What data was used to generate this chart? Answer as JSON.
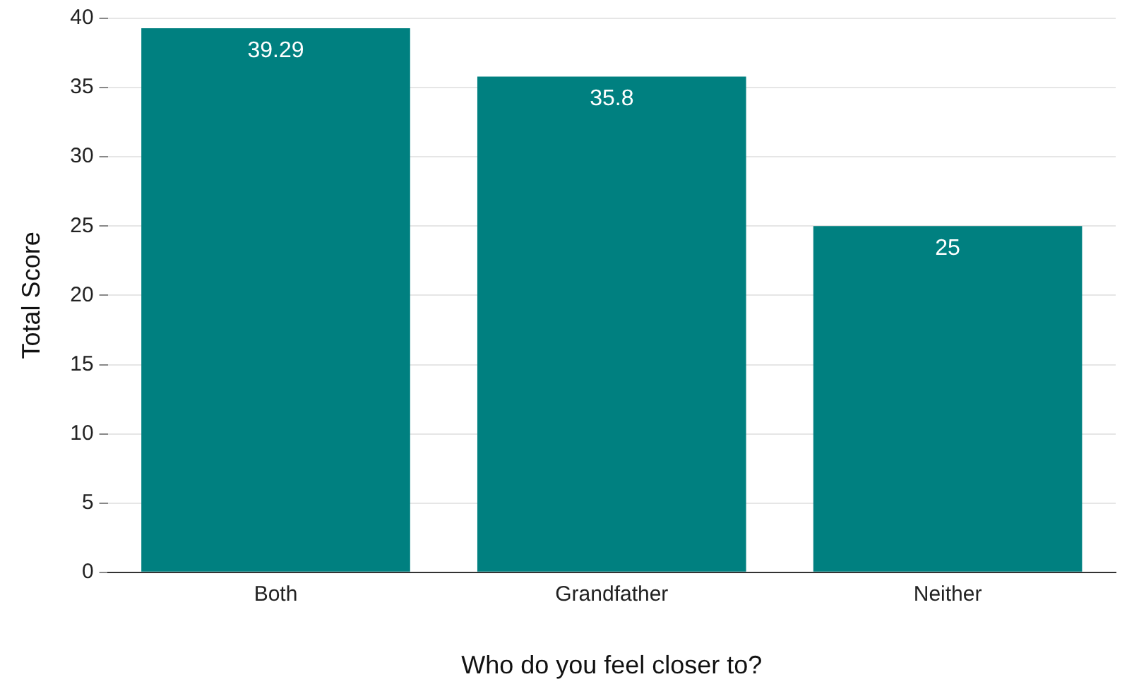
{
  "chart_data": {
    "type": "bar",
    "xlabel": "Who do you feel closer to?",
    "ylabel": "Total Score",
    "categories": [
      "Both",
      "Grandfather",
      "Neither"
    ],
    "values": [
      39.29,
      35.8,
      25
    ],
    "color": "#008080",
    "ylim": [
      0,
      40
    ],
    "yticks": [
      0,
      5,
      10,
      15,
      20,
      25,
      30,
      35,
      40
    ],
    "grid": "y",
    "data_labels": true
  }
}
